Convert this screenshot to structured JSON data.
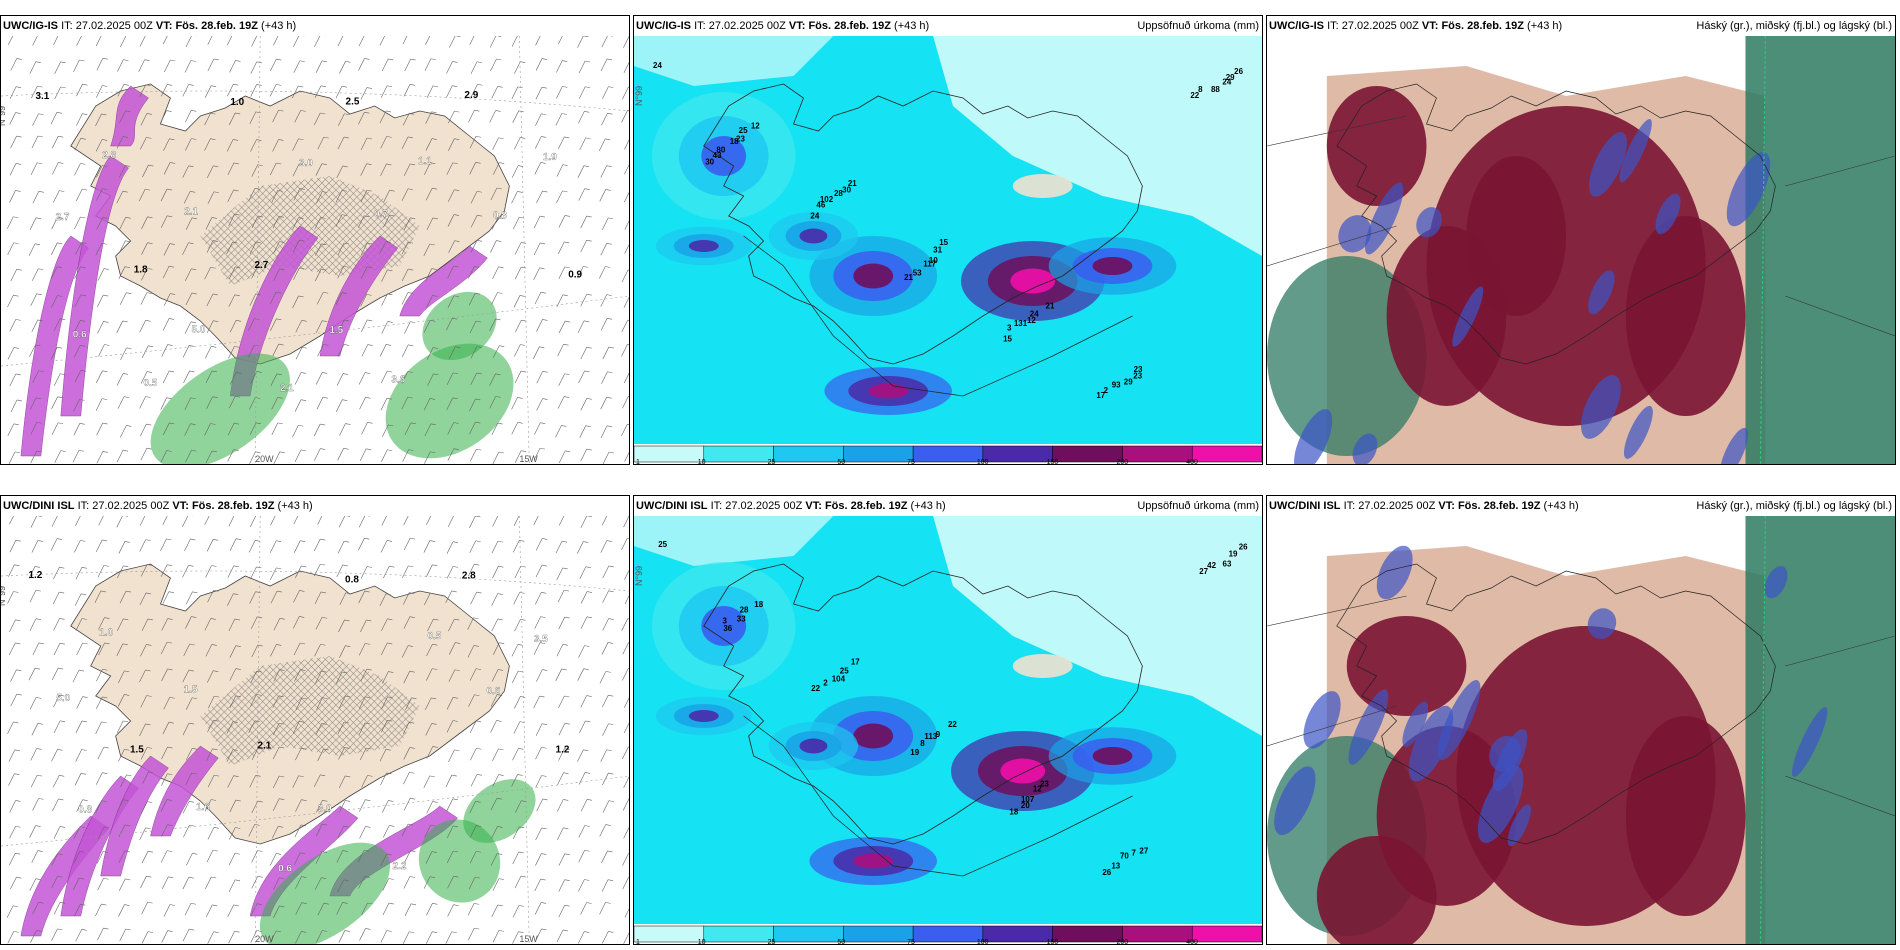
{
  "rows": [
    {
      "model": "UWC/IG-IS",
      "it_label": "IT:",
      "it_value": "27.02.2025 00Z",
      "vt_label": "VT:",
      "vt_value": "Fös. 28.feb. 19Z",
      "lead": "(+43 h)",
      "lat_label": "N°99",
      "lon_labels": [
        "20W",
        "15W"
      ],
      "precip_labels": [
        "24",
        "12",
        "21",
        "15",
        "21",
        "23",
        "26",
        "25",
        "30",
        "31",
        "24",
        "23",
        "29",
        "23",
        "28",
        "10",
        "12",
        "29",
        "24",
        "18",
        "102",
        "117",
        "131",
        "93",
        "88",
        "80",
        "46",
        "53",
        "3",
        "2",
        "8",
        "43",
        "24",
        "21",
        "15",
        "17",
        "22",
        "30"
      ],
      "wind_labels": [
        "3.1",
        "2.8",
        "2.1",
        "2.7",
        "1.5",
        "3.6",
        "2.9",
        "1.9",
        "2.7",
        "1.8",
        "5.0",
        "2.1",
        "2.5",
        "1.1",
        "0.8",
        "0.9",
        "0.6",
        "0.5",
        "1.0",
        "3.0",
        "0.7"
      ]
    },
    {
      "model": "UWC/DINI ISL",
      "it_label": "IT:",
      "it_value": "27.02.2025 00Z",
      "vt_label": "VT:",
      "vt_value": "Fös. 28.feb. 19Z",
      "lead": "(+43 h)",
      "lat_label": "N°99",
      "lon_labels": [
        "20W",
        "15W"
      ],
      "precip_labels": [
        "25",
        "18",
        "17",
        "22",
        "23",
        "27",
        "26",
        "28",
        "25",
        "9",
        "12",
        "7",
        "19",
        "33",
        "104",
        "113",
        "107",
        "70",
        "63",
        "3",
        "2",
        "8",
        "20",
        "13",
        "42",
        "36",
        "22",
        "19",
        "18",
        "26",
        "27"
      ],
      "wind_labels": [
        "1.2",
        "1.0",
        "1.5",
        "2.1",
        "3.0",
        "2.2",
        "2.8",
        "3.5",
        "5.0",
        "1.5",
        "1.6",
        "0.6",
        "0.8",
        "0.5",
        "0.6",
        "1.2",
        "0.8"
      ]
    }
  ],
  "precip_title": "Uppsöfnuð úrkoma (mm)",
  "cloud_title": "Háský (gr.), miðský (fj.bl.) og lágský (bl.)",
  "precip_legend": {
    "ticks": [
      "1",
      "10",
      "25",
      "50",
      "75",
      "100",
      "150",
      "200",
      "400"
    ],
    "colors": [
      "#c8fafa",
      "#42e8ef",
      "#1ec8f0",
      "#1aa2e6",
      "#3a5ef0",
      "#4a2aa8",
      "#6e0e5c",
      "#a8107e",
      "#ee10a8",
      "#f4b8f4"
    ]
  },
  "colors": {
    "land": "#f1e1cf",
    "precip_base": "#15e2f2",
    "precip_light": "#bff9f9",
    "wind_magenta": "#c455d6",
    "wind_green": "#35b04a",
    "cloud_high": "#7a1433",
    "cloud_mid": "#3c54c8",
    "cloud_low": "#2e7a62",
    "cloud_tan": "#d4a388"
  }
}
